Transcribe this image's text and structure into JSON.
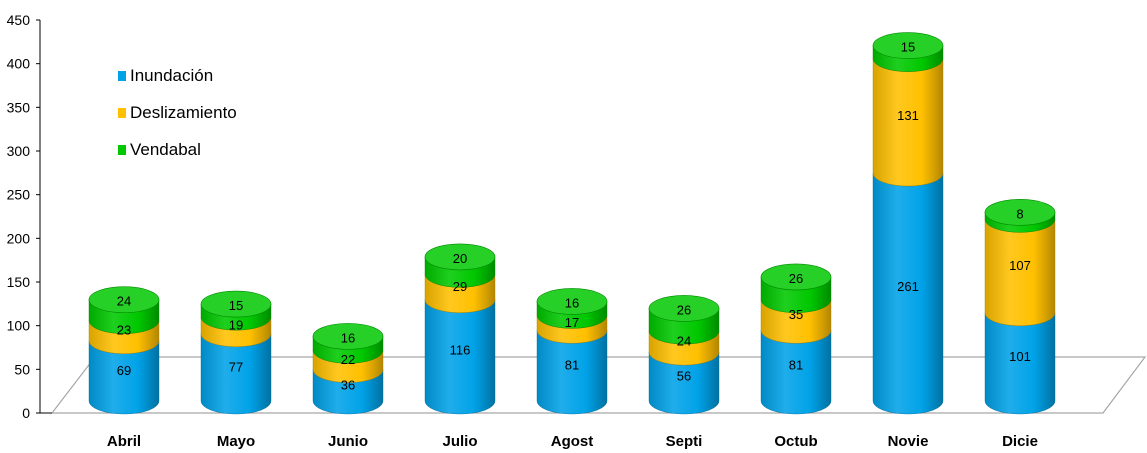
{
  "chart_data": {
    "type": "bar",
    "stacked": true,
    "style": "3d-cylinder",
    "title": "",
    "xlabel": "",
    "ylabel": "",
    "ylim": [
      0,
      450
    ],
    "yticks": [
      0,
      50,
      100,
      150,
      200,
      250,
      300,
      350,
      400,
      450
    ],
    "grid": false,
    "legend": "top-left",
    "categories": [
      "Abril",
      "Mayo",
      "Junio",
      "Julio",
      "Agost",
      "Septi",
      "Octub",
      "Novie",
      "Dicie"
    ],
    "series": [
      {
        "name": "Inundación",
        "color": "#00a2e8",
        "values": [
          69,
          77,
          36,
          116,
          81,
          56,
          81,
          261,
          101
        ]
      },
      {
        "name": "Deslizamiento",
        "color": "#ffc000",
        "values": [
          23,
          19,
          22,
          29,
          17,
          24,
          35,
          131,
          107
        ]
      },
      {
        "name": "Vendabal",
        "color": "#00c800",
        "values": [
          24,
          15,
          16,
          20,
          16,
          26,
          26,
          15,
          8
        ]
      }
    ]
  }
}
